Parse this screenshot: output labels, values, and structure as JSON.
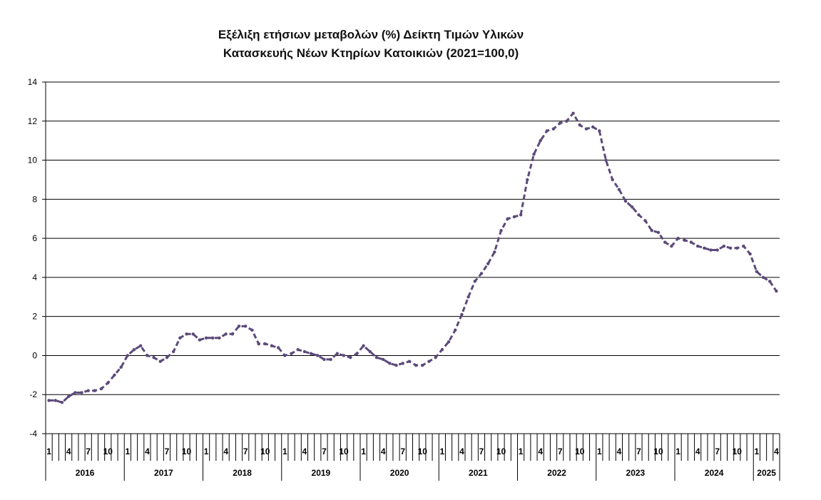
{
  "chart_data": {
    "type": "line",
    "title_line1": "Εξέλιξη ετήσιων μεταβολών (%) Δείκτη Τιμών Υλικών",
    "title_line2": "Κατασκευής Νέων Κτηρίων Κατοικιών (2021=100,0)",
    "ylim": [
      -4,
      14
    ],
    "yticks": [
      -4,
      -2,
      0,
      2,
      4,
      6,
      8,
      10,
      12,
      14
    ],
    "grid": true,
    "legend": "none",
    "line_color": "#5b4a7a",
    "month_labels": [
      "1",
      "4",
      "7",
      "10"
    ],
    "years": [
      "2016",
      "2017",
      "2018",
      "2019",
      "2020",
      "2021",
      "2022",
      "2023",
      "2024",
      "2025"
    ],
    "series": [
      {
        "values": [
          -2.3,
          -2.3,
          -2.4,
          -2.1,
          -1.9,
          -1.9,
          -1.8,
          -1.8,
          -1.7,
          -1.4,
          -1.0,
          -0.6,
          0.0,
          0.3,
          0.5,
          0.0,
          -0.1,
          -0.3,
          -0.1,
          0.2,
          0.9,
          1.1,
          1.1,
          0.8,
          0.9,
          0.9,
          0.9,
          1.1,
          1.1,
          1.5,
          1.5,
          1.3,
          0.6,
          0.6,
          0.5,
          0.4,
          0.0,
          0.1,
          0.3,
          0.2,
          0.1,
          0.0,
          -0.2,
          -0.2,
          0.1,
          0.0,
          -0.1,
          0.1,
          0.5,
          0.2,
          -0.1,
          -0.2,
          -0.4,
          -0.5,
          -0.4,
          -0.3,
          -0.5,
          -0.5,
          -0.3,
          -0.1,
          0.3,
          0.7,
          1.3,
          2.1,
          3.0,
          3.8,
          4.2,
          4.7,
          5.3,
          6.4,
          7.0,
          7.1,
          7.2,
          9.0,
          10.3,
          11.0,
          11.5,
          11.6,
          11.9,
          12.0,
          12.4,
          11.8,
          11.6,
          11.7,
          11.5,
          10.0,
          9.0,
          8.5,
          7.9,
          7.6,
          7.2,
          6.9,
          6.4,
          6.3,
          5.8,
          5.6,
          6.0,
          5.9,
          5.8,
          5.6,
          5.5,
          5.4,
          5.4,
          5.6,
          5.5,
          5.5,
          5.6,
          5.2,
          4.3,
          4.0,
          3.8,
          3.3
        ]
      }
    ]
  }
}
